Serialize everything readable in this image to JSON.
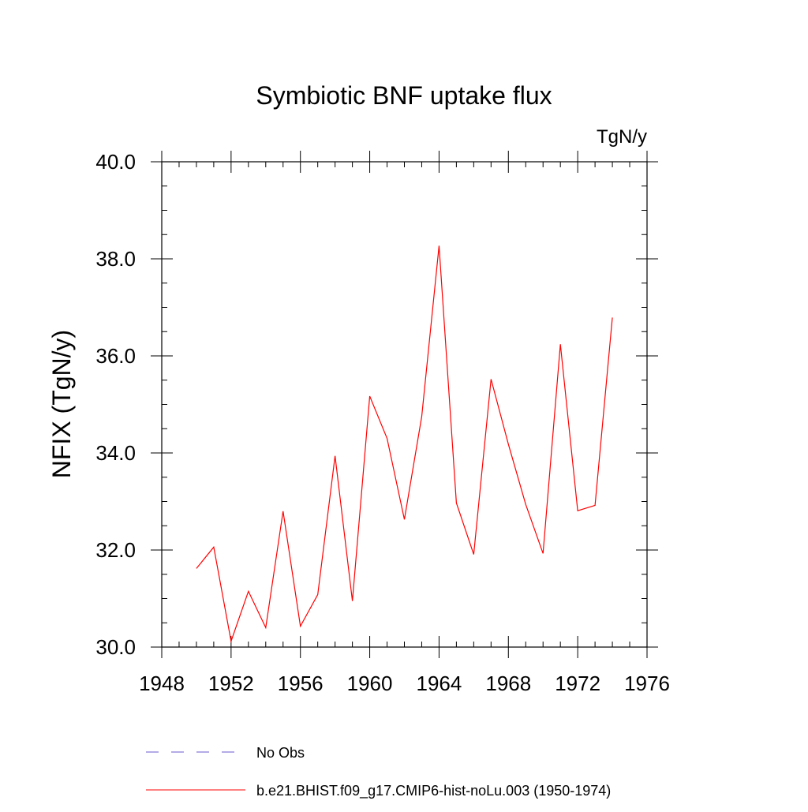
{
  "chart_data": {
    "type": "line",
    "title": "Symbiotic BNF uptake flux",
    "units_label": "TgN/y",
    "ylabel": "NFIX  (TgN/y)",
    "xlabel": "",
    "xlim": [
      1948,
      1976
    ],
    "ylim": [
      30,
      40
    ],
    "x_ticks": [
      1948,
      1952,
      1956,
      1960,
      1964,
      1968,
      1972,
      1976
    ],
    "x_tick_labels": [
      "1948",
      "1952",
      "1956",
      "1960",
      "1964",
      "1968",
      "1972",
      "1976"
    ],
    "x_minor_step": 1,
    "y_ticks": [
      30,
      32,
      34,
      36,
      38,
      40
    ],
    "y_tick_labels": [
      "30.0",
      "32.0",
      "34.0",
      "36.0",
      "38.0",
      "40.0"
    ],
    "y_minor_step": 0.5,
    "grid": false,
    "x": [
      1950,
      1951,
      1952,
      1953,
      1954,
      1955,
      1956,
      1957,
      1958,
      1959,
      1960,
      1961,
      1962,
      1963,
      1964,
      1965,
      1966,
      1967,
      1968,
      1969,
      1970,
      1971,
      1972,
      1973,
      1974
    ],
    "series": [
      {
        "name": "b.e21.BHIST.f09_g17.CMIP6-hist-noLu.003 (1950-1974)",
        "color": "#ff0000",
        "values": [
          31.62,
          32.06,
          30.12,
          31.15,
          30.4,
          32.8,
          30.43,
          31.08,
          33.94,
          30.95,
          35.17,
          34.3,
          32.63,
          34.75,
          38.27,
          32.97,
          31.91,
          35.52,
          34.18,
          32.94,
          31.93,
          36.24,
          32.81,
          32.92,
          36.79
        ]
      }
    ],
    "legend": {
      "placement": "bottom",
      "entries": [
        {
          "label": "No Obs",
          "color": "#6a5acd",
          "style": "dashed"
        },
        {
          "label": "b.e21.BHIST.f09_g17.CMIP6-hist-noLu.003 (1950-1974)",
          "color": "#ff0000",
          "style": "solid"
        }
      ]
    }
  }
}
